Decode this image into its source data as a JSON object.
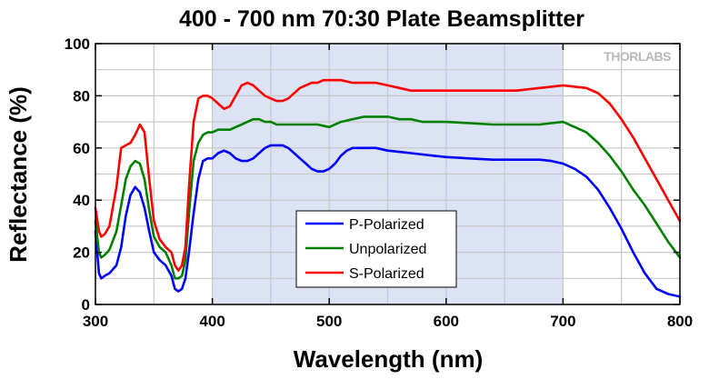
{
  "chart_data": {
    "type": "line",
    "title": "400 - 700 nm 70:30 Plate Beamsplitter",
    "xlabel": "Wavelength (nm)",
    "ylabel": "Reflectance (%)",
    "xlim": [
      300,
      800
    ],
    "ylim": [
      0,
      100
    ],
    "xticks": [
      300,
      400,
      500,
      600,
      700,
      800
    ],
    "yticks": [
      0,
      20,
      40,
      60,
      80,
      100
    ],
    "grid": true,
    "legend_position": "bottom-center",
    "highlight_band": [
      400,
      700
    ],
    "watermark": "THORLABS",
    "series": [
      {
        "name": "P-Polarized",
        "color": "#0000ff",
        "x": [
          300,
          303,
          305,
          308,
          312,
          318,
          322,
          326,
          330,
          334,
          338,
          342,
          346,
          350,
          355,
          360,
          365,
          368,
          371,
          374,
          377,
          380,
          384,
          388,
          392,
          396,
          400,
          405,
          410,
          415,
          420,
          425,
          430,
          435,
          440,
          445,
          450,
          455,
          460,
          465,
          470,
          475,
          480,
          485,
          490,
          495,
          500,
          505,
          510,
          515,
          520,
          525,
          530,
          535,
          540,
          550,
          560,
          570,
          580,
          590,
          600,
          620,
          640,
          660,
          680,
          690,
          700,
          710,
          720,
          730,
          740,
          750,
          760,
          770,
          780,
          790,
          800
        ],
        "y": [
          28,
          12,
          10,
          11,
          12,
          15,
          22,
          34,
          42,
          45,
          43,
          37,
          28,
          20,
          17,
          15,
          11,
          6,
          5,
          6,
          10,
          20,
          35,
          48,
          55,
          56,
          56,
          58,
          59,
          58,
          56,
          55,
          55,
          56,
          58,
          60,
          61,
          61,
          61,
          60,
          58,
          56,
          54,
          52,
          51,
          51,
          52,
          54,
          57,
          59,
          60,
          60,
          60,
          60,
          60,
          59,
          58.5,
          58,
          57.5,
          57,
          56.5,
          56,
          55.5,
          55.5,
          55.5,
          55,
          54,
          52,
          49,
          44,
          37,
          29,
          20,
          12,
          6,
          4,
          3
        ]
      },
      {
        "name": "Unpolarized",
        "color": "#008000",
        "x": [
          300,
          303,
          305,
          308,
          312,
          318,
          322,
          326,
          330,
          334,
          338,
          342,
          346,
          350,
          355,
          360,
          365,
          368,
          371,
          374,
          377,
          380,
          384,
          388,
          392,
          396,
          400,
          405,
          410,
          415,
          420,
          425,
          430,
          435,
          440,
          445,
          450,
          455,
          460,
          470,
          480,
          490,
          500,
          510,
          520,
          530,
          540,
          550,
          560,
          570,
          580,
          590,
          600,
          620,
          640,
          660,
          680,
          690,
          700,
          710,
          720,
          730,
          740,
          750,
          760,
          770,
          780,
          790,
          800
        ],
        "y": [
          32,
          20,
          18,
          19,
          21,
          28,
          38,
          48,
          53,
          55,
          54,
          48,
          36,
          26,
          22,
          20,
          15,
          10,
          10,
          11,
          17,
          35,
          55,
          62,
          65,
          66,
          66,
          67,
          67,
          67,
          68,
          69,
          70,
          71,
          71,
          70,
          70,
          69,
          69,
          69,
          69,
          69,
          68,
          70,
          71,
          72,
          72,
          72,
          71,
          71,
          70,
          70,
          70,
          69.5,
          69,
          69,
          69,
          69.5,
          70,
          68,
          66,
          62,
          57,
          51,
          44,
          38,
          31,
          24,
          18
        ]
      },
      {
        "name": "S-Polarized",
        "color": "#ff0000",
        "x": [
          300,
          303,
          305,
          308,
          312,
          318,
          322,
          326,
          330,
          334,
          338,
          342,
          346,
          350,
          355,
          360,
          365,
          368,
          371,
          374,
          377,
          380,
          384,
          388,
          392,
          396,
          400,
          405,
          410,
          415,
          420,
          425,
          430,
          435,
          440,
          445,
          450,
          455,
          460,
          465,
          470,
          475,
          480,
          485,
          490,
          495,
          500,
          510,
          520,
          530,
          540,
          550,
          560,
          570,
          580,
          590,
          600,
          620,
          640,
          660,
          680,
          690,
          700,
          710,
          720,
          730,
          740,
          750,
          760,
          770,
          780,
          790,
          800
        ],
        "y": [
          37,
          28,
          26,
          27,
          30,
          45,
          60,
          61,
          62,
          65,
          69,
          66,
          48,
          32,
          25,
          22,
          20,
          15,
          13,
          15,
          22,
          45,
          70,
          79,
          80,
          80,
          79,
          77,
          75,
          76,
          80,
          84,
          85,
          84,
          82,
          80,
          79,
          78,
          78,
          79,
          81,
          83,
          84,
          85,
          85,
          86,
          86,
          86,
          85,
          85,
          85,
          84,
          83,
          82,
          82,
          82,
          82,
          82,
          82,
          82,
          83,
          83.5,
          84,
          83.5,
          83,
          81,
          77,
          71,
          64,
          56,
          48,
          40,
          32
        ]
      }
    ]
  }
}
